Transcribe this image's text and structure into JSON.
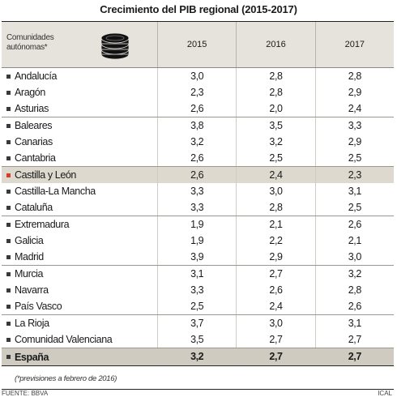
{
  "title": "Crecimiento del PIB regional (2015-2017)",
  "header": {
    "label_line1": "Comunidades",
    "label_line2": "autónomas*",
    "icon": "coin-stack-icon"
  },
  "note": "(*previsiones a febrero de 2016)",
  "source": "FUENTE: BBVA",
  "credit": "ICAL",
  "colors": {
    "header_bg": "#e6e3dc",
    "highlight_bg": "#ddd9cf",
    "highlight_marker": "#d93a2b",
    "total_bg": "#cfcbc0"
  },
  "chart_data": {
    "type": "table",
    "title": "Crecimiento del PIB regional (2015-2017)",
    "columns": [
      "2015",
      "2016",
      "2017"
    ],
    "groups": [
      {
        "rows": [
          {
            "name": "Andalucía",
            "values": [
              "3,0",
              "2,8",
              "2,8"
            ]
          },
          {
            "name": "Aragón",
            "values": [
              "2,3",
              "2,8",
              "2,9"
            ]
          },
          {
            "name": "Asturias",
            "values": [
              "2,6",
              "2,0",
              "2,4"
            ]
          }
        ]
      },
      {
        "rows": [
          {
            "name": "Baleares",
            "values": [
              "3,8",
              "3,5",
              "3,3"
            ]
          },
          {
            "name": "Canarias",
            "values": [
              "3,2",
              "3,2",
              "2,9"
            ]
          },
          {
            "name": "Cantabria",
            "values": [
              "2,6",
              "2,5",
              "2,5"
            ]
          }
        ]
      },
      {
        "rows": [
          {
            "name": "Castilla y León",
            "values": [
              "2,6",
              "2,4",
              "2,3"
            ],
            "highlight": true
          },
          {
            "name": "Castilla-La Mancha",
            "values": [
              "3,3",
              "3,0",
              "3,1"
            ]
          },
          {
            "name": "Cataluña",
            "values": [
              "3,3",
              "2,8",
              "2,5"
            ]
          }
        ]
      },
      {
        "rows": [
          {
            "name": "Extremadura",
            "values": [
              "1,9",
              "2,1",
              "2,6"
            ]
          },
          {
            "name": "Galicia",
            "values": [
              "1,9",
              "2,2",
              "2,1"
            ]
          },
          {
            "name": "Madrid",
            "values": [
              "3,9",
              "2,9",
              "3,0"
            ]
          }
        ]
      },
      {
        "rows": [
          {
            "name": "Murcia",
            "values": [
              "3,1",
              "2,7",
              "3,2"
            ]
          },
          {
            "name": "Navarra",
            "values": [
              "3,3",
              "2,6",
              "2,8"
            ]
          },
          {
            "name": "País Vasco",
            "values": [
              "2,5",
              "2,4",
              "2,6"
            ]
          }
        ]
      },
      {
        "rows": [
          {
            "name": "La Rioja",
            "values": [
              "3,7",
              "3,0",
              "3,1"
            ]
          },
          {
            "name": "Comunidad Valenciana",
            "values": [
              "3,5",
              "2,7",
              "2,7"
            ]
          }
        ]
      }
    ],
    "total": {
      "name": "España",
      "values": [
        "3,2",
        "2,7",
        "2,7"
      ]
    }
  }
}
